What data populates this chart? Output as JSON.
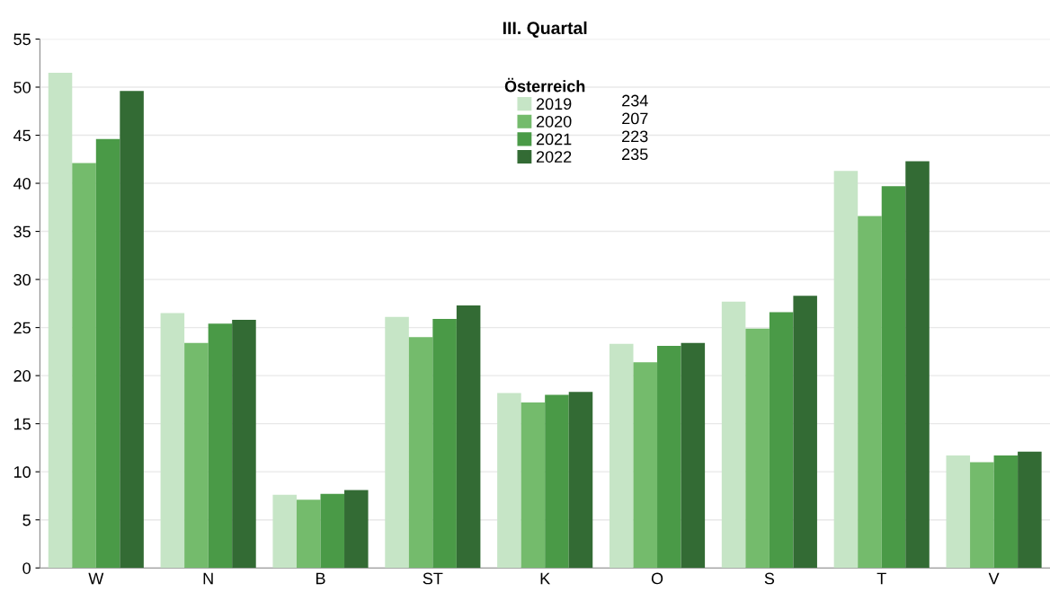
{
  "chart_data": {
    "type": "bar",
    "title": "III. Quartal",
    "legend_title": "Österreich",
    "categories": [
      "W",
      "N",
      "B",
      "ST",
      "K",
      "O",
      "S",
      "T",
      "V"
    ],
    "series": [
      {
        "name": "2019",
        "color": "#c6e5c6",
        "values": [
          51.5,
          26.5,
          7.6,
          26.1,
          18.2,
          23.3,
          27.7,
          41.3,
          11.7
        ]
      },
      {
        "name": "2020",
        "color": "#74bb6c",
        "values": [
          42.1,
          23.4,
          7.1,
          24.0,
          17.2,
          21.4,
          24.9,
          36.6,
          11.0
        ]
      },
      {
        "name": "2021",
        "color": "#4a9a47",
        "values": [
          44.6,
          25.4,
          7.7,
          25.9,
          18.0,
          23.1,
          26.6,
          39.7,
          11.7
        ]
      },
      {
        "name": "2022",
        "color": "#336b34",
        "values": [
          49.6,
          25.8,
          8.1,
          27.3,
          18.3,
          23.4,
          28.3,
          42.3,
          12.1
        ]
      }
    ],
    "annotations": [
      "234",
      "207",
      "223",
      "235"
    ],
    "ylim": [
      0,
      55
    ],
    "yticks": [
      0,
      5,
      10,
      15,
      20,
      25,
      30,
      35,
      40,
      45,
      50,
      55
    ],
    "grid": "y",
    "legend": "top"
  }
}
